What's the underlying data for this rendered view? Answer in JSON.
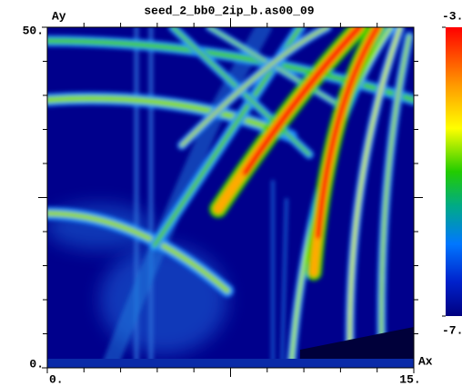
{
  "chart_data": {
    "type": "heatmap",
    "title": "seed_2_bb0_2ip_b.as00_09",
    "xlabel": "Ax",
    "ylabel": "Ay",
    "xlim": [
      0,
      15
    ],
    "ylim": [
      0,
      50
    ],
    "xticks": [
      {
        "value": 0,
        "label": "0."
      },
      {
        "value": 15,
        "label": "15."
      }
    ],
    "yticks": [
      {
        "value": 0,
        "label": "0."
      },
      {
        "value": 50,
        "label": "50."
      }
    ],
    "colorbar": {
      "lim": [
        -7,
        -3
      ],
      "ticks": [
        {
          "value": -3,
          "label": "-3."
        },
        {
          "value": -7,
          "label": "-7."
        }
      ]
    }
  }
}
